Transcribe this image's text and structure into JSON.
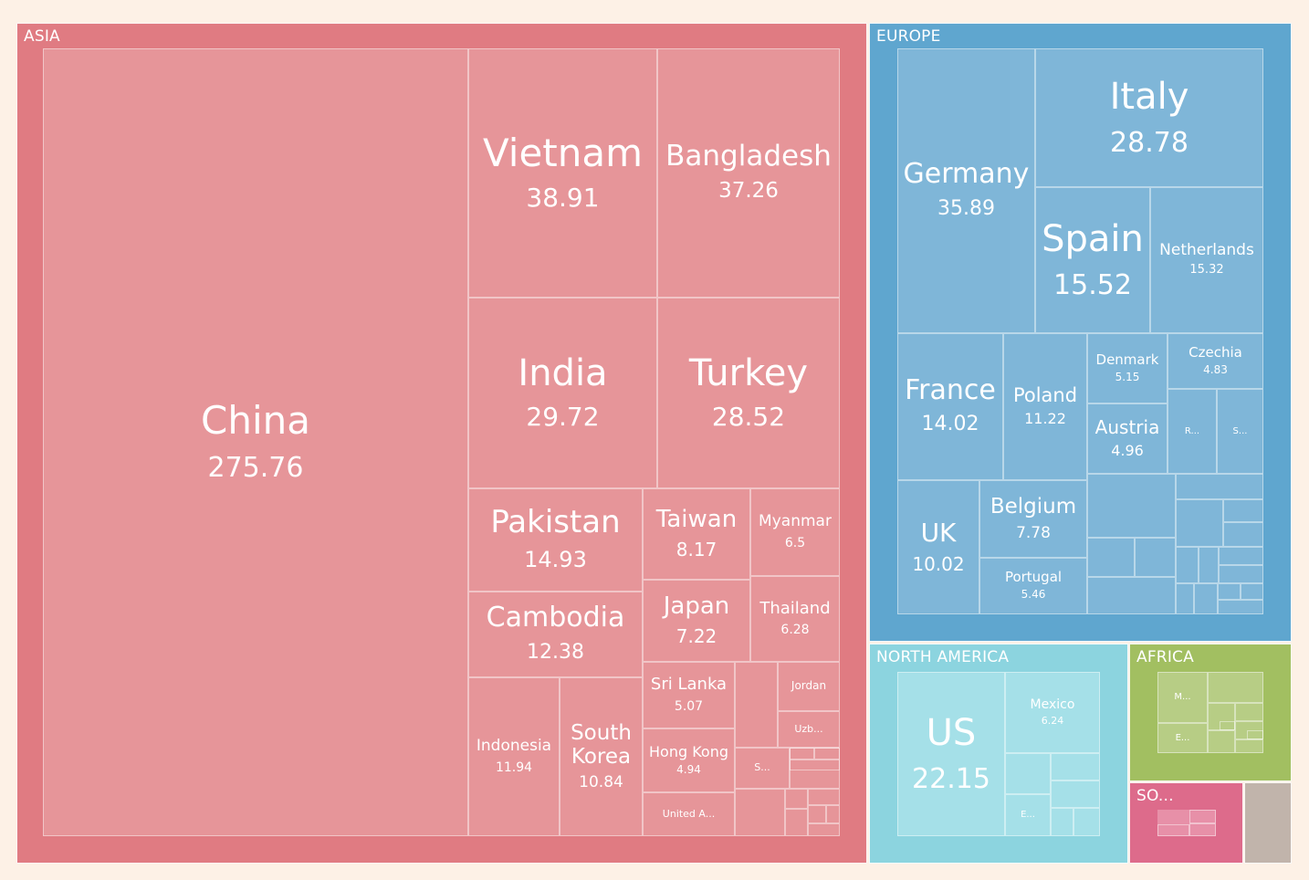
{
  "chart_data": {
    "type": "treemap",
    "regions": [
      {
        "name": "ASIA",
        "color": "#e07b82",
        "tile_color": "#e69599",
        "items": [
          {
            "name": "China",
            "value": "275.76"
          },
          {
            "name": "Vietnam",
            "value": "38.91"
          },
          {
            "name": "Bangladesh",
            "value": "37.26"
          },
          {
            "name": "India",
            "value": "29.72"
          },
          {
            "name": "Turkey",
            "value": "28.52"
          },
          {
            "name": "Pakistan",
            "value": "14.93"
          },
          {
            "name": "Taiwan",
            "value": "8.17"
          },
          {
            "name": "Myanmar",
            "value": "6.5"
          },
          {
            "name": "Cambodia",
            "value": "12.38"
          },
          {
            "name": "Japan",
            "value": "7.22"
          },
          {
            "name": "Thailand",
            "value": "6.28"
          },
          {
            "name": "Indonesia",
            "value": "11.94"
          },
          {
            "name": "South Korea",
            "value": "10.84"
          },
          {
            "name": "Sri Lanka",
            "value": "5.07"
          },
          {
            "name": "Hong Kong",
            "value": "4.94"
          },
          {
            "name": "United A...",
            "value": ""
          },
          {
            "name": "Jordan",
            "value": ""
          },
          {
            "name": "Uzb...",
            "value": ""
          },
          {
            "name": "S...",
            "value": ""
          }
        ]
      },
      {
        "name": "EUROPE",
        "color": "#5fa6cf",
        "tile_color": "#7fb6d8",
        "items": [
          {
            "name": "Germany",
            "value": "35.89"
          },
          {
            "name": "Italy",
            "value": "28.78"
          },
          {
            "name": "Spain",
            "value": "15.52"
          },
          {
            "name": "Netherlands",
            "value": "15.32"
          },
          {
            "name": "France",
            "value": "14.02"
          },
          {
            "name": "Poland",
            "value": "11.22"
          },
          {
            "name": "Denmark",
            "value": "5.15"
          },
          {
            "name": "Czechia",
            "value": "4.83"
          },
          {
            "name": "Austria",
            "value": "4.96"
          },
          {
            "name": "R...",
            "value": ""
          },
          {
            "name": "S...",
            "value": ""
          },
          {
            "name": "UK",
            "value": "10.02"
          },
          {
            "name": "Belgium",
            "value": "7.78"
          },
          {
            "name": "Portugal",
            "value": "5.46"
          }
        ]
      },
      {
        "name": "NORTH AMERICA",
        "color": "#8cd4df",
        "tile_color": "#a5e0e8",
        "items": [
          {
            "name": "US",
            "value": "22.15"
          },
          {
            "name": "Mexico",
            "value": "6.24"
          },
          {
            "name": "E...",
            "value": ""
          }
        ]
      },
      {
        "name": "AFRICA",
        "color": "#a2bf61",
        "tile_color": "#b7cd85",
        "items": [
          {
            "name": "M...",
            "value": ""
          },
          {
            "name": "E...",
            "value": ""
          }
        ]
      },
      {
        "name": "SO...",
        "color": "#dd6b8b",
        "tile_color": "#e790a8",
        "items": []
      },
      {
        "name": "",
        "color": "#c1b4ab",
        "tile_color": "#c1b4ab",
        "items": []
      }
    ]
  }
}
